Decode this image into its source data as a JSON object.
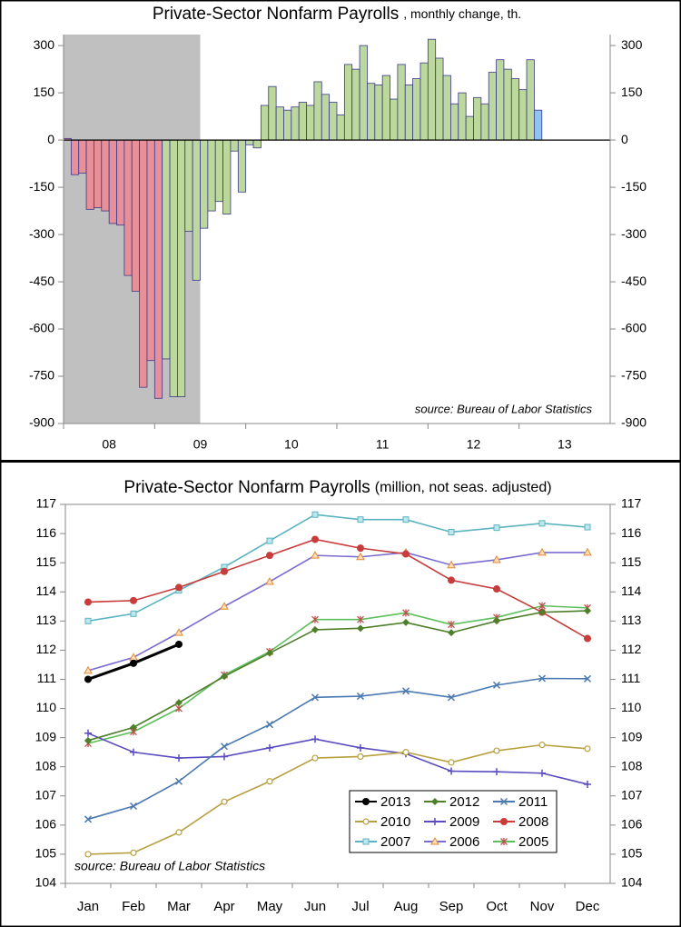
{
  "chart_data": [
    {
      "type": "bar",
      "title": "Private-Sector Nonfarm Payrolls",
      "subtitle": ", monthly change, th.",
      "annotation": "source: Bureau of Labor Statistics",
      "year_labels": [
        "08",
        "09",
        "10",
        "11",
        "12",
        "13"
      ],
      "shaded_months": [
        0,
        18
      ],
      "categories": [
        null,
        null,
        null,
        null,
        null,
        null,
        null,
        null,
        null,
        null,
        null,
        null,
        null,
        null,
        null,
        null,
        null,
        null,
        null,
        null,
        null,
        null,
        null,
        null,
        null,
        null,
        null,
        null,
        null,
        null,
        null,
        null,
        null,
        null,
        null,
        null,
        null,
        null,
        null,
        null,
        null,
        null,
        null,
        null,
        null,
        null,
        null,
        null,
        null,
        null,
        null,
        null,
        null,
        null,
        null,
        null,
        null,
        null,
        null,
        null,
        null,
        null,
        null
      ],
      "values": [
        5,
        -110,
        -105,
        -220,
        -215,
        -225,
        -265,
        -270,
        -430,
        -480,
        -785,
        -700,
        -820,
        -695,
        -815,
        -815,
        -290,
        -445,
        -280,
        -225,
        -195,
        -235,
        -35,
        -165,
        -15,
        -25,
        110,
        170,
        105,
        95,
        105,
        120,
        110,
        185,
        145,
        120,
        80,
        240,
        225,
        300,
        180,
        175,
        205,
        130,
        240,
        175,
        195,
        245,
        320,
        260,
        205,
        115,
        150,
        75,
        135,
        115,
        215,
        255,
        225,
        195,
        160,
        255,
        95
      ],
      "colors": [
        "#e8909a",
        "#e8909a",
        "#e8909a",
        "#e8909a",
        "#e8909a",
        "#e8909a",
        "#e8909a",
        "#e8909a",
        "#e8909a",
        "#e8909a",
        "#e8909a",
        "#e8909a",
        "#e8909a",
        "#bcd89c",
        "#bcd89c",
        "#bcd89c",
        "#bcd89c",
        "#bcd89c",
        "#bcd89c",
        "#bcd89c",
        "#bcd89c",
        "#bcd89c",
        "#bcd89c",
        "#bcd89c",
        "#bcd89c",
        "#bcd89c",
        "#bcd89c",
        "#bcd89c",
        "#bcd89c",
        "#bcd89c",
        "#bcd89c",
        "#bcd89c",
        "#bcd89c",
        "#bcd89c",
        "#bcd89c",
        "#bcd89c",
        "#bcd89c",
        "#bcd89c",
        "#bcd89c",
        "#bcd89c",
        "#bcd89c",
        "#bcd89c",
        "#bcd89c",
        "#bcd89c",
        "#bcd89c",
        "#bcd89c",
        "#bcd89c",
        "#bcd89c",
        "#bcd89c",
        "#bcd89c",
        "#bcd89c",
        "#bcd89c",
        "#bcd89c",
        "#bcd89c",
        "#bcd89c",
        "#bcd89c",
        "#bcd89c",
        "#bcd89c",
        "#bcd89c",
        "#bcd89c",
        "#bcd89c",
        "#bcd89c",
        "#8fc4f0"
      ],
      "ylim": [
        -900,
        335
      ],
      "yticks": [
        -900,
        -750,
        -600,
        -450,
        -300,
        -150,
        0,
        150,
        300
      ]
    },
    {
      "type": "line",
      "title": "Private-Sector Nonfarm Payrolls",
      "subtitle": "(million, not seas. adjusted)",
      "annotation": "source: Bureau of Labor Statistics",
      "categories": [
        "Jan",
        "Feb",
        "Mar",
        "Apr",
        "May",
        "Jun",
        "Jul",
        "Aug",
        "Sep",
        "Oct",
        "Nov",
        "Dec"
      ],
      "ylim": [
        104,
        117
      ],
      "yticks": [
        104,
        105,
        106,
        107,
        108,
        109,
        110,
        111,
        112,
        113,
        114,
        115,
        116,
        117
      ],
      "series": [
        {
          "name": "2013",
          "color": "#000000",
          "marker": "dot",
          "values": [
            111.0,
            111.55,
            112.2,
            null,
            null,
            null,
            null,
            null,
            null,
            null,
            null,
            null
          ]
        },
        {
          "name": "2012",
          "color": "#4f7f2a",
          "marker": "diamond",
          "values": [
            108.9,
            109.35,
            110.2,
            111.1,
            111.9,
            112.7,
            112.75,
            112.95,
            112.6,
            113.0,
            113.3,
            113.35
          ]
        },
        {
          "name": "2011",
          "color": "#4a78b0",
          "marker": "x",
          "values": [
            106.2,
            106.65,
            107.5,
            108.7,
            109.45,
            110.38,
            110.42,
            110.6,
            110.38,
            110.8,
            111.03,
            111.02
          ]
        },
        {
          "name": "2010",
          "color": "#b8a040",
          "marker": "ring",
          "values": [
            105.0,
            105.05,
            105.75,
            106.8,
            107.5,
            108.3,
            108.35,
            108.5,
            108.15,
            108.55,
            108.75,
            108.62
          ]
        },
        {
          "name": "2009",
          "color": "#5a4cc0",
          "marker": "plus",
          "values": [
            109.15,
            108.5,
            108.3,
            108.35,
            108.65,
            108.95,
            108.65,
            108.45,
            107.85,
            107.83,
            107.78,
            107.4
          ]
        },
        {
          "name": "2008",
          "color": "#c83c3c",
          "marker": "dot",
          "values": [
            113.65,
            113.7,
            114.15,
            114.7,
            115.25,
            115.8,
            115.5,
            115.3,
            114.4,
            114.1,
            113.3,
            112.4
          ]
        },
        {
          "name": "2007",
          "color": "#5ab4c0",
          "marker": "square",
          "values": [
            113.0,
            113.25,
            114.05,
            114.85,
            115.75,
            116.65,
            116.48,
            116.48,
            116.05,
            116.2,
            116.35,
            116.22
          ]
        },
        {
          "name": "2006",
          "color": "#7a6cd0",
          "marker": "triangle",
          "values": [
            111.3,
            111.75,
            112.6,
            113.5,
            114.35,
            115.25,
            115.2,
            115.35,
            114.92,
            115.1,
            115.35,
            115.35
          ]
        },
        {
          "name": "2005",
          "color": "#5cbf5c",
          "marker": "star",
          "values": [
            108.8,
            109.2,
            110.0,
            111.15,
            111.95,
            113.05,
            113.05,
            113.28,
            112.88,
            113.12,
            113.52,
            113.45
          ]
        }
      ]
    }
  ]
}
